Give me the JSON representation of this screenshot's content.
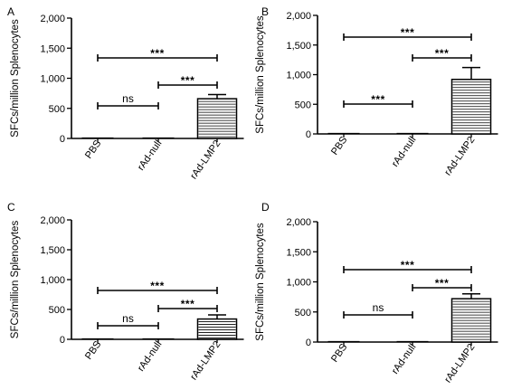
{
  "chart_data": [
    {
      "type": "bar",
      "panel_label": "A",
      "categories": [
        "PBS",
        "rAd-null",
        "rAd-LMP2"
      ],
      "values": [
        0,
        0,
        660
      ],
      "error": [
        0,
        0,
        70
      ],
      "ylabel": "SFCs/million Splenocytes",
      "yticks": [
        "0",
        "500",
        "1,000",
        "1,500",
        "2,000"
      ],
      "ylim": [
        0,
        2000
      ],
      "bar_fill": "horizontal-stripes",
      "comparisons": [
        {
          "from": 0,
          "to": 2,
          "label": "***"
        },
        {
          "from": 1,
          "to": 2,
          "label": "***"
        },
        {
          "from": 0,
          "to": 1,
          "label": "ns"
        }
      ]
    },
    {
      "type": "bar",
      "panel_label": "B",
      "categories": [
        "PBS",
        "rAd-null",
        "rAd-LMP2"
      ],
      "values": [
        0,
        0,
        920
      ],
      "error": [
        0,
        0,
        200
      ],
      "ylabel": "SFCs/million Splenocytes",
      "yticks": [
        "0",
        "500",
        "1,000",
        "1,500",
        "2,000"
      ],
      "ylim": [
        0,
        2000
      ],
      "bar_fill": "horizontal-stripes",
      "comparisons": [
        {
          "from": 0,
          "to": 2,
          "label": "***"
        },
        {
          "from": 1,
          "to": 2,
          "label": "***"
        },
        {
          "from": 0,
          "to": 1,
          "label": "***"
        }
      ]
    },
    {
      "type": "bar",
      "panel_label": "C",
      "categories": [
        "PBS",
        "rAd-null",
        "rAd-LMP2"
      ],
      "values": [
        0,
        0,
        340
      ],
      "error": [
        0,
        0,
        70
      ],
      "ylabel": "SFCs/million Splenocytes",
      "yticks": [
        "0",
        "500",
        "1,000",
        "1,500",
        "2,000"
      ],
      "ylim": [
        0,
        2000
      ],
      "bar_fill": "horizontal-stripes",
      "comparisons": [
        {
          "from": 0,
          "to": 2,
          "label": "***"
        },
        {
          "from": 1,
          "to": 2,
          "label": "***"
        },
        {
          "from": 0,
          "to": 1,
          "label": "ns"
        }
      ]
    },
    {
      "type": "bar",
      "panel_label": "D",
      "categories": [
        "PBS",
        "rAd-null",
        "rAd-LMP2"
      ],
      "values": [
        0,
        0,
        720
      ],
      "error": [
        0,
        0,
        80
      ],
      "ylabel": "SFCs/million Splenocytes",
      "yticks": [
        "0",
        "500",
        "1,000",
        "1,500",
        "2,000"
      ],
      "ylim": [
        0,
        2000
      ],
      "bar_fill": "horizontal-stripes",
      "comparisons": [
        {
          "from": 0,
          "to": 2,
          "label": "***"
        },
        {
          "from": 1,
          "to": 2,
          "label": "***"
        },
        {
          "from": 0,
          "to": 1,
          "label": "ns"
        }
      ]
    }
  ]
}
